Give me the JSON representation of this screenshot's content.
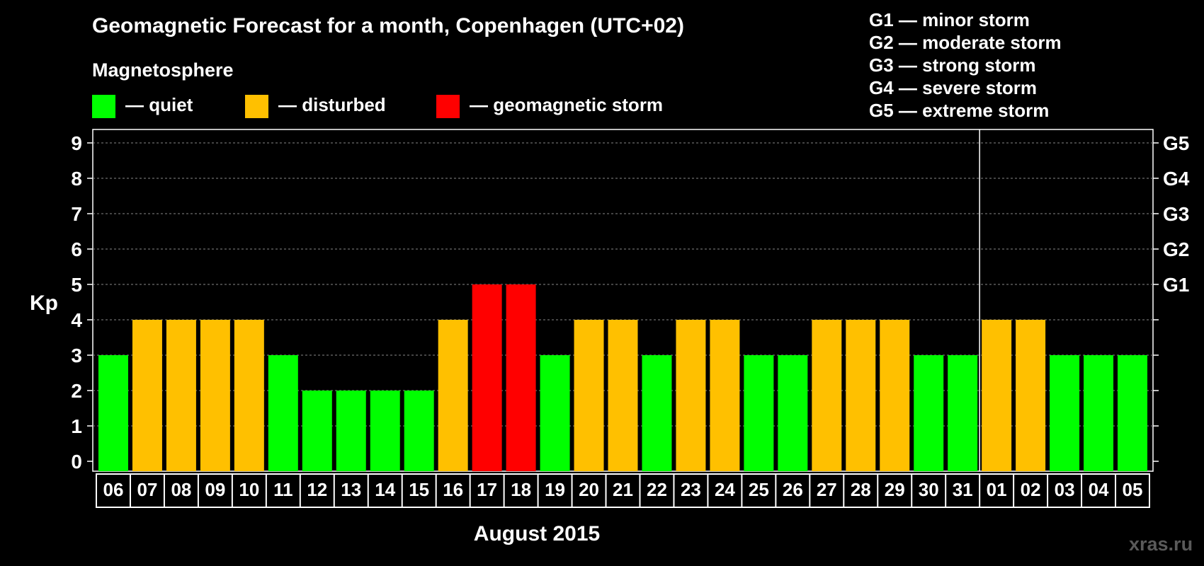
{
  "chart_data": {
    "type": "bar",
    "title": "Geomagnetic Forecast for a month, Copenhagen (UTC+02)",
    "xlabel": "August 2015",
    "ylabel": "Kp",
    "ylim": [
      0,
      9
    ],
    "yticks": [
      "0",
      "1",
      "2",
      "3",
      "4",
      "5",
      "6",
      "7",
      "8",
      "9"
    ],
    "right_axis": [
      {
        "kp": 5,
        "label": "G1"
      },
      {
        "kp": 6,
        "label": "G2"
      },
      {
        "kp": 7,
        "label": "G3"
      },
      {
        "kp": 8,
        "label": "G4"
      },
      {
        "kp": 9,
        "label": "G5"
      }
    ],
    "categories": [
      "06",
      "07",
      "08",
      "09",
      "10",
      "11",
      "12",
      "13",
      "14",
      "15",
      "16",
      "17",
      "18",
      "19",
      "20",
      "21",
      "22",
      "23",
      "24",
      "25",
      "26",
      "27",
      "28",
      "29",
      "30",
      "31",
      "01",
      "02",
      "03",
      "04",
      "05"
    ],
    "values": [
      3,
      4,
      4,
      4,
      4,
      3,
      2,
      2,
      2,
      2,
      4,
      5,
      5,
      3,
      4,
      4,
      3,
      4,
      4,
      3,
      3,
      4,
      4,
      4,
      3,
      3,
      4,
      4,
      3,
      3,
      3
    ],
    "month_divider_after": "31",
    "legend_title": "Magnetosphere",
    "legend": [
      {
        "label": "— quiet",
        "color": "#00ff00"
      },
      {
        "label": "— disturbed",
        "color": "#ffc000"
      },
      {
        "label": "— geomagnetic storm",
        "color": "#ff0000"
      }
    ],
    "storm_levels": [
      "G1 — minor storm",
      "G2 — moderate storm",
      "G3 — strong storm",
      "G4 — severe storm",
      "G5 — extreme storm"
    ]
  },
  "watermark": "xras.ru"
}
